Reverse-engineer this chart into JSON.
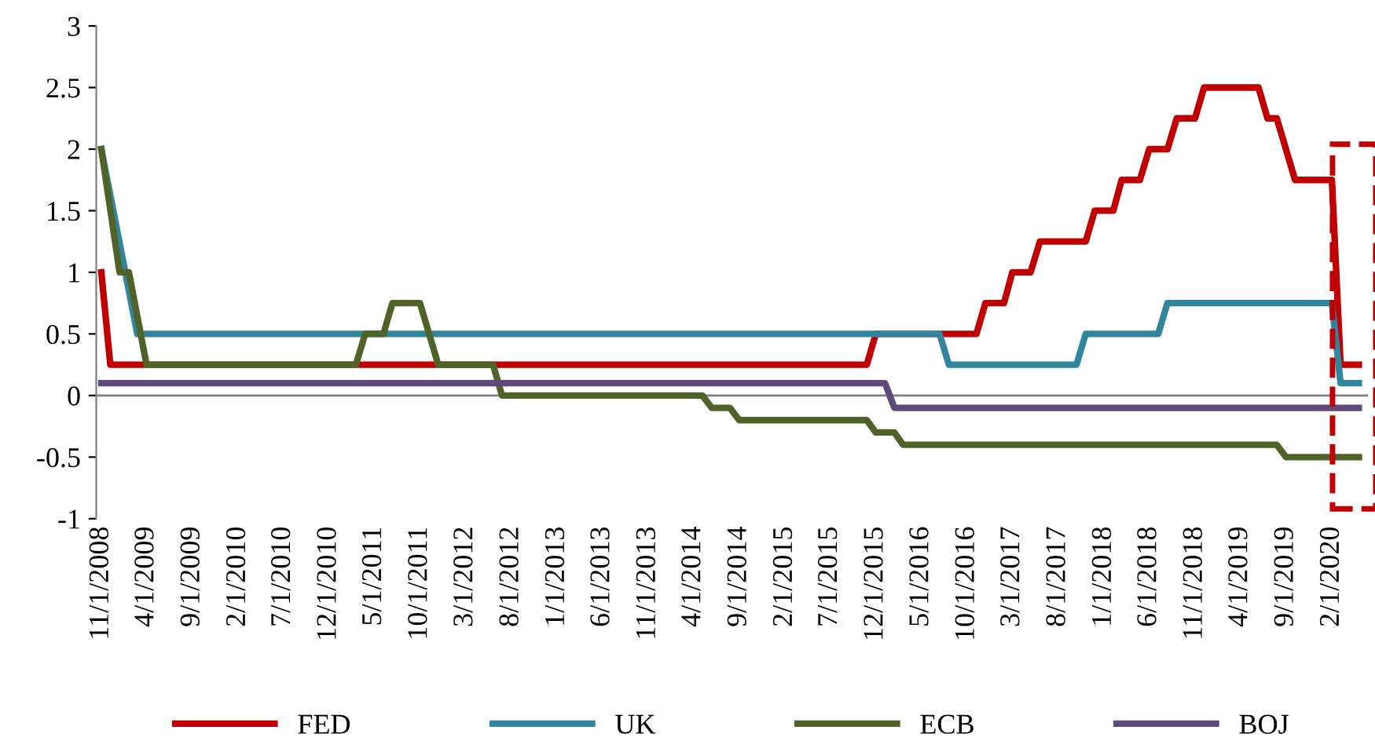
{
  "chart_data": {
    "type": "line",
    "series": [
      {
        "name": "FED",
        "color": "#c00000",
        "x": [
          "2008-11",
          "2008-12",
          "2015-11",
          "2015-12",
          "2016-11",
          "2016-12",
          "2017-02",
          "2017-03",
          "2017-05",
          "2017-06",
          "2017-11",
          "2017-12",
          "2018-02",
          "2018-03",
          "2018-05",
          "2018-06",
          "2018-08",
          "2018-09",
          "2018-11",
          "2018-12",
          "2019-06",
          "2019-07",
          "2019-08",
          "2019-10",
          "2020-02",
          "2020-03",
          "2020-05"
        ],
        "values": [
          1.0,
          0.25,
          0.25,
          0.5,
          0.5,
          0.75,
          0.75,
          1.0,
          1.0,
          1.25,
          1.25,
          1.5,
          1.5,
          1.75,
          1.75,
          2.0,
          2.0,
          2.25,
          2.25,
          2.5,
          2.5,
          2.25,
          2.25,
          1.75,
          1.75,
          0.25,
          0.25
        ]
      },
      {
        "name": "UK",
        "color": "#31859c",
        "x": [
          "2008-11",
          "2009-03",
          "2016-07",
          "2016-08",
          "2017-10",
          "2017-11",
          "2018-07",
          "2018-08",
          "2020-02",
          "2020-03",
          "2020-05"
        ],
        "values": [
          2.0,
          0.5,
          0.5,
          0.25,
          0.25,
          0.5,
          0.5,
          0.75,
          0.75,
          0.1,
          0.1
        ]
      },
      {
        "name": "ECB",
        "color": "#4f6228",
        "x": [
          "2008-11",
          "2009-01",
          "2009-02",
          "2009-04",
          "2011-03",
          "2011-04",
          "2011-06",
          "2011-07",
          "2011-10",
          "2011-12",
          "2012-06",
          "2012-07",
          "2014-05",
          "2014-06",
          "2014-08",
          "2014-09",
          "2015-11",
          "2015-12",
          "2016-02",
          "2016-03",
          "2019-08",
          "2019-09",
          "2020-05"
        ],
        "values": [
          2.0,
          1.0,
          1.0,
          0.25,
          0.25,
          0.5,
          0.5,
          0.75,
          0.75,
          0.25,
          0.25,
          0.0,
          0.0,
          -0.1,
          -0.1,
          -0.2,
          -0.2,
          -0.3,
          -0.3,
          -0.4,
          -0.4,
          -0.5,
          -0.5
        ]
      },
      {
        "name": "BOJ",
        "color": "#604a7b",
        "x": [
          "2008-11",
          "2016-01",
          "2016-02",
          "2020-05"
        ],
        "values": [
          0.1,
          0.1,
          -0.1,
          -0.1
        ]
      }
    ],
    "xlim": [
      "2008-10-15",
      "2020-06-01"
    ],
    "xticks": [
      {
        "value": "2008-11-01",
        "label": "11/1/2008"
      },
      {
        "value": "2009-04-01",
        "label": "4/1/2009"
      },
      {
        "value": "2009-09-01",
        "label": "9/1/2009"
      },
      {
        "value": "2010-02-01",
        "label": "2/1/2010"
      },
      {
        "value": "2010-07-01",
        "label": "7/1/2010"
      },
      {
        "value": "2010-12-01",
        "label": "12/1/2010"
      },
      {
        "value": "2011-05-01",
        "label": "5/1/2011"
      },
      {
        "value": "2011-10-01",
        "label": "10/1/2011"
      },
      {
        "value": "2012-03-01",
        "label": "3/1/2012"
      },
      {
        "value": "2012-08-01",
        "label": "8/1/2012"
      },
      {
        "value": "2013-01-01",
        "label": "1/1/2013"
      },
      {
        "value": "2013-06-01",
        "label": "6/1/2013"
      },
      {
        "value": "2013-11-01",
        "label": "11/1/2013"
      },
      {
        "value": "2014-04-01",
        "label": "4/1/2014"
      },
      {
        "value": "2014-09-01",
        "label": "9/1/2014"
      },
      {
        "value": "2015-02-01",
        "label": "2/1/2015"
      },
      {
        "value": "2015-07-01",
        "label": "7/1/2015"
      },
      {
        "value": "2015-12-01",
        "label": "12/1/2015"
      },
      {
        "value": "2016-05-01",
        "label": "5/1/2016"
      },
      {
        "value": "2016-10-01",
        "label": "10/1/2016"
      },
      {
        "value": "2017-03-01",
        "label": "3/1/2017"
      },
      {
        "value": "2017-08-01",
        "label": "8/1/2017"
      },
      {
        "value": "2018-01-01",
        "label": "1/1/2018"
      },
      {
        "value": "2018-06-01",
        "label": "6/1/2018"
      },
      {
        "value": "2018-11-01",
        "label": "11/1/2018"
      },
      {
        "value": "2019-04-01",
        "label": "4/1/2019"
      },
      {
        "value": "2019-09-01",
        "label": "9/1/2019"
      },
      {
        "value": "2020-02-01",
        "label": "2/1/2020"
      }
    ],
    "ylim": [
      -1,
      3
    ],
    "yticks": [
      -1,
      -0.5,
      0,
      0.5,
      1,
      1.5,
      2,
      2.5,
      3
    ],
    "ref_lines": [
      {
        "axis": "y",
        "value": 0,
        "color": "#808080"
      }
    ],
    "grid": false,
    "legend": "bottom",
    "marker": "none",
    "line_style": "solid"
  }
}
